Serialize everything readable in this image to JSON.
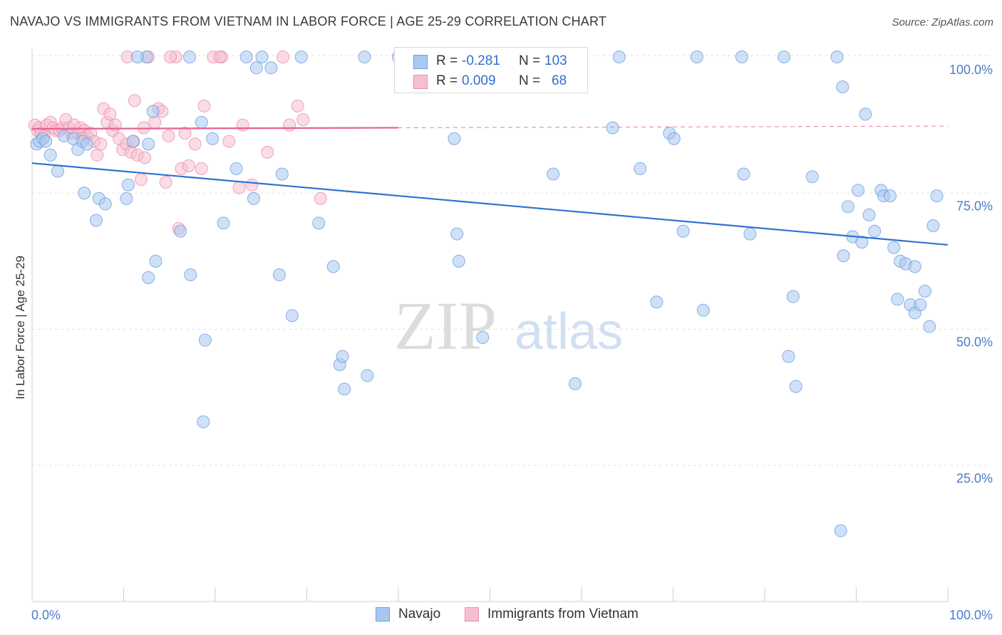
{
  "title": "NAVAJO VS IMMIGRANTS FROM VIETNAM IN LABOR FORCE | AGE 25-29 CORRELATION CHART",
  "source": "Source: ZipAtlas.com",
  "watermark": {
    "zip": "ZIP",
    "atlas": "atlas"
  },
  "colors": {
    "navajo": "#a9c8f0",
    "navajo_stroke": "#6d9de0",
    "navajo_line": "#2f72d0",
    "vietnam": "#f6bfd0",
    "vietnam_stroke": "#ec8fae",
    "vietnam_line": "#e8628e",
    "tick": "#4a7cc9"
  },
  "legend": {
    "rows": [
      {
        "r_label": "R =",
        "r_value": "-0.281",
        "n_label": "N =",
        "n_value": "103"
      },
      {
        "r_label": "R =",
        "r_value": "0.009",
        "n_label": "N =",
        "n_value": "68"
      }
    ]
  },
  "bottom_legend": [
    {
      "label": "Navajo"
    },
    {
      "label": "Immigrants from Vietnam"
    }
  ],
  "chart_data": {
    "type": "scatter",
    "title": "NAVAJO VS IMMIGRANTS FROM VIETNAM IN LABOR FORCE | AGE 25-29 CORRELATION CHART",
    "xlabel": "",
    "ylabel": "In Labor Force | Age 25-29",
    "xlim": [
      0,
      100
    ],
    "ylim": [
      0,
      105
    ],
    "x_tick_labels": [
      "0.0%",
      "100.0%"
    ],
    "y_ticks": [
      25,
      50,
      75,
      100
    ],
    "y_tick_labels": [
      "25.0%",
      "50.0%",
      "75.0%",
      "100.0%"
    ],
    "grid": true,
    "legend_position": "top-center",
    "series": [
      {
        "name": "Navajo",
        "trend": {
          "x": [
            0,
            100
          ],
          "y": [
            80.5,
            65.5
          ]
        },
        "points": [
          [
            0.5,
            84
          ],
          [
            0.8,
            84.5
          ],
          [
            1.2,
            85
          ],
          [
            1.5,
            84.5
          ],
          [
            2,
            82
          ],
          [
            2.8,
            79
          ],
          [
            3.5,
            85.5
          ],
          [
            4.5,
            85
          ],
          [
            5,
            83
          ],
          [
            5.5,
            84.5
          ],
          [
            6,
            84
          ],
          [
            5.7,
            75
          ],
          [
            7.3,
            74
          ],
          [
            8,
            73
          ],
          [
            7,
            70
          ],
          [
            10.3,
            74
          ],
          [
            10.5,
            76.5
          ],
          [
            11,
            84.5
          ],
          [
            12.5,
            100
          ],
          [
            11.5,
            100
          ],
          [
            12.7,
            84
          ],
          [
            12.7,
            59.5
          ],
          [
            13.2,
            90
          ],
          [
            13.5,
            62.5
          ],
          [
            16.2,
            68
          ],
          [
            17.3,
            60
          ],
          [
            17.2,
            100
          ],
          [
            18.5,
            88
          ],
          [
            18.9,
            48
          ],
          [
            18.7,
            33
          ],
          [
            19.7,
            85
          ],
          [
            20.9,
            69.5
          ],
          [
            22.3,
            79.5
          ],
          [
            23.4,
            100
          ],
          [
            24.5,
            98
          ],
          [
            25.1,
            100
          ],
          [
            26.1,
            98
          ],
          [
            24.2,
            74
          ],
          [
            27.3,
            78.5
          ],
          [
            27,
            60
          ],
          [
            28.4,
            52.5
          ],
          [
            29.4,
            100
          ],
          [
            31.3,
            69.5
          ],
          [
            32.9,
            61.5
          ],
          [
            33.6,
            43.5
          ],
          [
            33.9,
            45
          ],
          [
            34.1,
            39
          ],
          [
            36.6,
            41.5
          ],
          [
            36.3,
            100
          ],
          [
            40,
            100
          ],
          [
            46.1,
            85
          ],
          [
            46.4,
            67.5
          ],
          [
            46.6,
            62.5
          ],
          [
            49.2,
            48.5
          ],
          [
            50.2,
            100
          ],
          [
            56.9,
            78.5
          ],
          [
            59.2,
            100
          ],
          [
            59.3,
            40
          ],
          [
            64.1,
            100
          ],
          [
            63.4,
            87
          ],
          [
            66.4,
            79.5
          ],
          [
            68.2,
            55
          ],
          [
            69.6,
            86
          ],
          [
            70.1,
            85
          ],
          [
            71.1,
            68
          ],
          [
            72.6,
            100
          ],
          [
            73.3,
            53.5
          ],
          [
            77.5,
            100
          ],
          [
            77.7,
            78.5
          ],
          [
            78.4,
            67.5
          ],
          [
            82.1,
            100
          ],
          [
            82.6,
            45
          ],
          [
            83.1,
            56
          ],
          [
            83.4,
            39.5
          ],
          [
            85.2,
            78
          ],
          [
            87.9,
            100
          ],
          [
            88.5,
            94.5
          ],
          [
            88.3,
            13
          ],
          [
            88.6,
            63.5
          ],
          [
            89.1,
            72.5
          ],
          [
            89.6,
            67
          ],
          [
            90.2,
            75.5
          ],
          [
            90.6,
            66
          ],
          [
            91,
            89.5
          ],
          [
            91.4,
            71
          ],
          [
            92,
            68
          ],
          [
            92.7,
            75.5
          ],
          [
            93,
            74.5
          ],
          [
            93.7,
            74.5
          ],
          [
            94.1,
            65
          ],
          [
            94.5,
            55.5
          ],
          [
            94.8,
            62.5
          ],
          [
            95.4,
            62
          ],
          [
            95.9,
            54.5
          ],
          [
            96.4,
            61.5
          ],
          [
            96.4,
            53
          ],
          [
            97,
            54.5
          ],
          [
            97.5,
            57
          ],
          [
            98,
            50.5
          ],
          [
            98.4,
            69
          ],
          [
            98.8,
            74.5
          ]
        ]
      },
      {
        "name": "Immigrants from Vietnam",
        "trend_solid": {
          "x": [
            0,
            40
          ],
          "y": [
            86.8,
            87.0
          ]
        },
        "trend_dashed": {
          "x": [
            40,
            100
          ],
          "y": [
            87.0,
            87.3
          ]
        },
        "points": [
          [
            0.3,
            87.5
          ],
          [
            0.6,
            86.5
          ],
          [
            0.8,
            87
          ],
          [
            1,
            86
          ],
          [
            1.3,
            85.5
          ],
          [
            1.6,
            87.5
          ],
          [
            2,
            88
          ],
          [
            2.3,
            87
          ],
          [
            2.6,
            86.5
          ],
          [
            3,
            86.5
          ],
          [
            3.3,
            87
          ],
          [
            3.7,
            88.5
          ],
          [
            4,
            87
          ],
          [
            4.3,
            86
          ],
          [
            4.6,
            87.5
          ],
          [
            5,
            86
          ],
          [
            5.3,
            87
          ],
          [
            5.7,
            86.5
          ],
          [
            6,
            85.5
          ],
          [
            6.4,
            86
          ],
          [
            6.8,
            84.5
          ],
          [
            7.1,
            82
          ],
          [
            7.5,
            84
          ],
          [
            7.8,
            90.5
          ],
          [
            8.2,
            88
          ],
          [
            8.5,
            89.5
          ],
          [
            8.8,
            86.5
          ],
          [
            9.1,
            87.5
          ],
          [
            9.5,
            85
          ],
          [
            9.9,
            83
          ],
          [
            10.3,
            84
          ],
          [
            10.8,
            82.5
          ],
          [
            11.2,
            92
          ],
          [
            11.5,
            82
          ],
          [
            11.9,
            77.5
          ],
          [
            12.3,
            81.5
          ],
          [
            12.7,
            100
          ],
          [
            13.4,
            88
          ],
          [
            13.8,
            90.5
          ],
          [
            14.2,
            90
          ],
          [
            14.6,
            77
          ],
          [
            14.9,
            85.5
          ],
          [
            15.7,
            100
          ],
          [
            16,
            68.5
          ],
          [
            16.3,
            79.5
          ],
          [
            16.7,
            86
          ],
          [
            17.1,
            80
          ],
          [
            17.8,
            84
          ],
          [
            18.5,
            79.5
          ],
          [
            18.8,
            91
          ],
          [
            19.8,
            100
          ],
          [
            20.7,
            100
          ],
          [
            21.5,
            84.5
          ],
          [
            22.6,
            76
          ],
          [
            23,
            87.5
          ],
          [
            25.7,
            82.5
          ],
          [
            27.4,
            100
          ],
          [
            28.1,
            87.5
          ],
          [
            29,
            91
          ],
          [
            29.6,
            88.5
          ],
          [
            31.5,
            74
          ],
          [
            10.4,
            100
          ],
          [
            20.5,
            100
          ],
          [
            24,
            76.5
          ],
          [
            15.1,
            100
          ],
          [
            11.1,
            84.5
          ],
          [
            12.2,
            87
          ],
          [
            5.5,
            85
          ]
        ]
      }
    ]
  }
}
